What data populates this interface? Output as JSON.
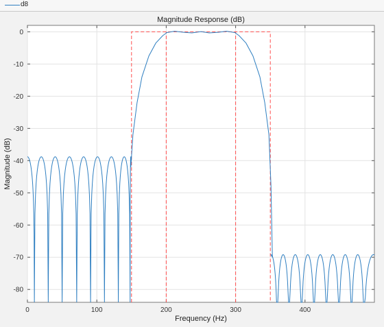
{
  "legend": {
    "entries": [
      {
        "label": "d8",
        "color": "#2f7fc1"
      }
    ]
  },
  "chart_data": {
    "type": "line",
    "title": "Magnitude Response (dB)",
    "xlabel": "Frequency (Hz)",
    "ylabel": "Magnitude (dB)",
    "xlim": [
      0,
      500
    ],
    "ylim": [
      -84,
      2
    ],
    "xticks": [
      0,
      100,
      200,
      300,
      400
    ],
    "yticks": [
      0,
      -10,
      -20,
      -30,
      -40,
      -50,
      -60,
      -70,
      -80
    ],
    "grid": true,
    "legend_position": "top-left",
    "series": [
      {
        "name": "d8",
        "color": "#2f7fc1",
        "stopband_low": {
          "f_start": 0,
          "f_end": 149,
          "peak_db": -38.8,
          "null_freqs": [
            10,
            30,
            50,
            71,
            91,
            111,
            131,
            148
          ]
        },
        "transition_low": {
          "points": [
            [
              149,
              -42
            ],
            [
              152,
              -32
            ],
            [
              158,
              -22
            ],
            [
              165,
              -14
            ],
            [
              175,
              -7.5
            ],
            [
              185,
              -3.5
            ],
            [
              195,
              -1.2
            ],
            [
              200,
              -0.4
            ]
          ]
        },
        "passband": {
          "points": [
            [
              200,
              -0.3
            ],
            [
              212,
              0.2
            ],
            [
              225,
              -0.15
            ],
            [
              237,
              -0.35
            ],
            [
              250,
              0.05
            ],
            [
              262,
              -0.35
            ],
            [
              275,
              -0.15
            ],
            [
              287,
              0.2
            ],
            [
              300,
              -0.3
            ]
          ]
        },
        "transition_high": {
          "points": [
            [
              300,
              -0.4
            ],
            [
              305,
              -1.2
            ],
            [
              315,
              -3.5
            ],
            [
              325,
              -7.5
            ],
            [
              335,
              -14
            ],
            [
              342,
              -22
            ],
            [
              348,
              -32
            ],
            [
              351,
              -48
            ],
            [
              353,
              -70
            ]
          ]
        },
        "stopband_high": {
          "f_start": 351,
          "f_end": 500,
          "peak_db": -69.2,
          "null_freqs": [
            360,
            377,
            395,
            413,
            431,
            449,
            467,
            485
          ]
        }
      }
    ],
    "mask": {
      "color": "#ff4d4d",
      "style": "dashed",
      "segments": [
        [
          [
            150,
            -90
          ],
          [
            150,
            0
          ],
          [
            350,
            0
          ],
          [
            350,
            -90
          ]
        ],
        [
          [
            200,
            -90
          ],
          [
            200,
            0
          ]
        ],
        [
          [
            300,
            -90
          ],
          [
            300,
            0
          ]
        ]
      ]
    }
  }
}
